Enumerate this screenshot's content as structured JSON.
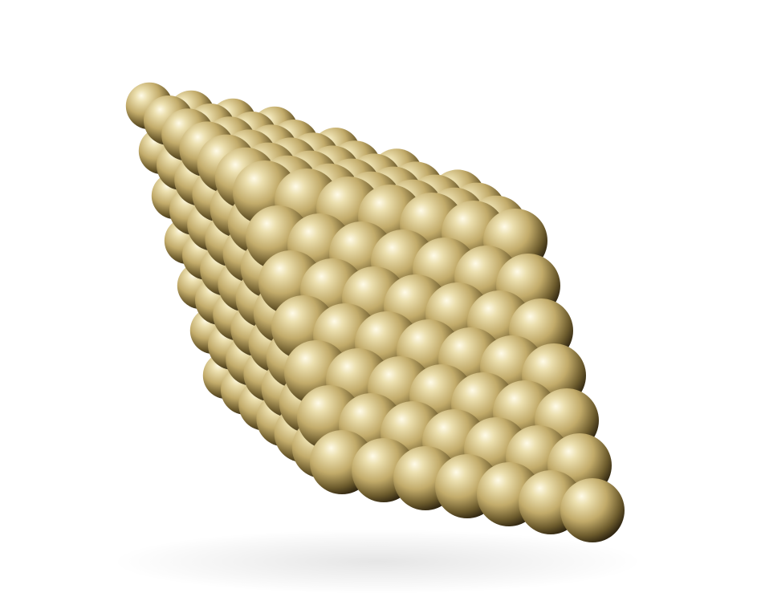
{
  "scene": {
    "subject": "gold-sphere-cluster",
    "background_color": "#ffffff",
    "sphere_colors": {
      "highlight": "#fffbe8",
      "light": "#ece0b0",
      "mid": "#c2ab6a",
      "shadow": "#6b5a2c",
      "dark": "#2e2410"
    }
  }
}
